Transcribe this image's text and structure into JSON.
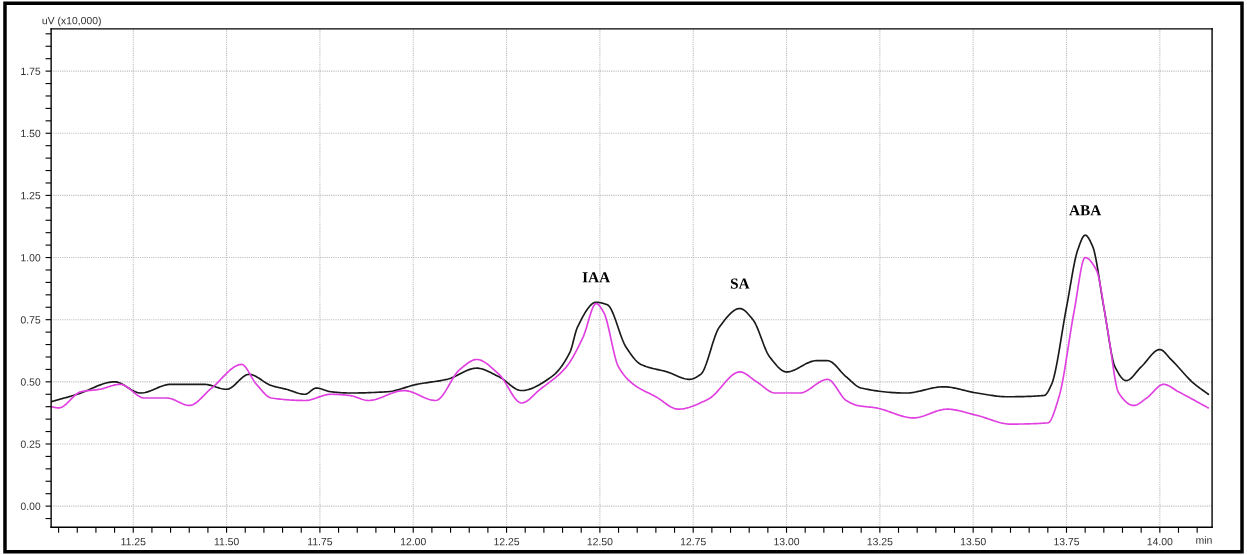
{
  "chart_data": {
    "type": "line",
    "xlabel": "min",
    "ylabel": "uV (x10,000)",
    "xlim": [
      11.03,
      14.14
    ],
    "ylim": [
      -0.085,
      1.92
    ],
    "grid": true,
    "xticks": [
      {
        "value": 11.05,
        "label": null
      },
      {
        "value": 11.1,
        "label": null
      },
      {
        "value": 11.15,
        "label": null
      },
      {
        "value": 11.2,
        "label": null
      },
      {
        "value": 11.25,
        "label": "11.25"
      },
      {
        "value": 11.3,
        "label": null
      },
      {
        "value": 11.35,
        "label": null
      },
      {
        "value": 11.4,
        "label": null
      },
      {
        "value": 11.45,
        "label": null
      },
      {
        "value": 11.5,
        "label": "11.50"
      },
      {
        "value": 11.55,
        "label": null
      },
      {
        "value": 11.6,
        "label": null
      },
      {
        "value": 11.65,
        "label": null
      },
      {
        "value": 11.7,
        "label": null
      },
      {
        "value": 11.75,
        "label": "11.75"
      },
      {
        "value": 11.8,
        "label": null
      },
      {
        "value": 11.85,
        "label": null
      },
      {
        "value": 11.9,
        "label": null
      },
      {
        "value": 11.95,
        "label": null
      },
      {
        "value": 12.0,
        "label": "12.00"
      },
      {
        "value": 12.05,
        "label": null
      },
      {
        "value": 12.1,
        "label": null
      },
      {
        "value": 12.15,
        "label": null
      },
      {
        "value": 12.2,
        "label": null
      },
      {
        "value": 12.25,
        "label": "12.25"
      },
      {
        "value": 12.3,
        "label": null
      },
      {
        "value": 12.35,
        "label": null
      },
      {
        "value": 12.4,
        "label": null
      },
      {
        "value": 12.45,
        "label": null
      },
      {
        "value": 12.5,
        "label": "12.50"
      },
      {
        "value": 12.55,
        "label": null
      },
      {
        "value": 12.6,
        "label": null
      },
      {
        "value": 12.65,
        "label": null
      },
      {
        "value": 12.7,
        "label": null
      },
      {
        "value": 12.75,
        "label": "12.75"
      },
      {
        "value": 12.8,
        "label": null
      },
      {
        "value": 12.85,
        "label": null
      },
      {
        "value": 12.9,
        "label": null
      },
      {
        "value": 12.95,
        "label": null
      },
      {
        "value": 13.0,
        "label": "13.00"
      },
      {
        "value": 13.05,
        "label": null
      },
      {
        "value": 13.1,
        "label": null
      },
      {
        "value": 13.15,
        "label": null
      },
      {
        "value": 13.2,
        "label": null
      },
      {
        "value": 13.25,
        "label": "13.25"
      },
      {
        "value": 13.3,
        "label": null
      },
      {
        "value": 13.35,
        "label": null
      },
      {
        "value": 13.4,
        "label": null
      },
      {
        "value": 13.45,
        "label": null
      },
      {
        "value": 13.5,
        "label": "13.50"
      },
      {
        "value": 13.55,
        "label": null
      },
      {
        "value": 13.6,
        "label": null
      },
      {
        "value": 13.65,
        "label": null
      },
      {
        "value": 13.7,
        "label": null
      },
      {
        "value": 13.75,
        "label": "13.75"
      },
      {
        "value": 13.8,
        "label": null
      },
      {
        "value": 13.85,
        "label": null
      },
      {
        "value": 13.9,
        "label": null
      },
      {
        "value": 13.95,
        "label": null
      },
      {
        "value": 14.0,
        "label": "14.00"
      },
      {
        "value": 14.05,
        "label": null
      },
      {
        "value": 14.1,
        "label": null
      }
    ],
    "yticks": [
      {
        "value": -0.05,
        "label": null
      },
      {
        "value": 0.0,
        "label": "0.00"
      },
      {
        "value": 0.05,
        "label": null
      },
      {
        "value": 0.1,
        "label": null
      },
      {
        "value": 0.15,
        "label": null
      },
      {
        "value": 0.2,
        "label": null
      },
      {
        "value": 0.25,
        "label": "0.25"
      },
      {
        "value": 0.3,
        "label": null
      },
      {
        "value": 0.35,
        "label": null
      },
      {
        "value": 0.4,
        "label": null
      },
      {
        "value": 0.45,
        "label": null
      },
      {
        "value": 0.5,
        "label": "0.50"
      },
      {
        "value": 0.55,
        "label": null
      },
      {
        "value": 0.6,
        "label": null
      },
      {
        "value": 0.65,
        "label": null
      },
      {
        "value": 0.7,
        "label": null
      },
      {
        "value": 0.75,
        "label": "0.75"
      },
      {
        "value": 0.8,
        "label": null
      },
      {
        "value": 0.85,
        "label": null
      },
      {
        "value": 0.9,
        "label": null
      },
      {
        "value": 0.95,
        "label": null
      },
      {
        "value": 1.0,
        "label": "1.00"
      },
      {
        "value": 1.05,
        "label": null
      },
      {
        "value": 1.1,
        "label": null
      },
      {
        "value": 1.15,
        "label": null
      },
      {
        "value": 1.2,
        "label": null
      },
      {
        "value": 1.25,
        "label": "1.25"
      },
      {
        "value": 1.3,
        "label": null
      },
      {
        "value": 1.35,
        "label": null
      },
      {
        "value": 1.4,
        "label": null
      },
      {
        "value": 1.45,
        "label": null
      },
      {
        "value": 1.5,
        "label": "1.50"
      },
      {
        "value": 1.55,
        "label": null
      },
      {
        "value": 1.6,
        "label": null
      },
      {
        "value": 1.65,
        "label": null
      },
      {
        "value": 1.7,
        "label": null
      },
      {
        "value": 1.75,
        "label": "1.75"
      },
      {
        "value": 1.8,
        "label": null
      },
      {
        "value": 1.85,
        "label": null
      },
      {
        "value": 1.9,
        "label": null
      }
    ],
    "annotations": [
      {
        "text": "IAA",
        "x": 12.49,
        "y": 0.82
      },
      {
        "text": "SA",
        "x": 12.875,
        "y": 0.795
      },
      {
        "text": "ABA",
        "x": 13.8,
        "y": 1.09
      }
    ],
    "series": [
      {
        "color": "#1a1a1a",
        "x": [
          11.03,
          11.1,
          11.2,
          11.27,
          11.35,
          11.44,
          11.5,
          11.56,
          11.62,
          11.66,
          11.71,
          11.74,
          11.78,
          11.83,
          11.93,
          12.01,
          12.09,
          12.17,
          12.23,
          12.29,
          12.37,
          12.42,
          12.44,
          12.49,
          12.52,
          12.57,
          12.61,
          12.68,
          12.74,
          12.77,
          12.82,
          12.875,
          12.91,
          12.955,
          13.0,
          13.08,
          13.11,
          13.16,
          13.2,
          13.32,
          13.42,
          13.51,
          13.59,
          13.69,
          13.71,
          13.75,
          13.78,
          13.8,
          13.82,
          13.85,
          13.88,
          13.91,
          13.95,
          14.0,
          14.03,
          14.09,
          14.13
        ],
        "values": [
          0.42,
          0.45,
          0.5,
          0.455,
          0.49,
          0.49,
          0.47,
          0.53,
          0.485,
          0.47,
          0.45,
          0.475,
          0.46,
          0.455,
          0.46,
          0.49,
          0.51,
          0.555,
          0.52,
          0.465,
          0.52,
          0.62,
          0.72,
          0.82,
          0.81,
          0.64,
          0.57,
          0.54,
          0.51,
          0.53,
          0.72,
          0.795,
          0.75,
          0.6,
          0.54,
          0.585,
          0.585,
          0.52,
          0.475,
          0.455,
          0.48,
          0.455,
          0.44,
          0.445,
          0.49,
          0.8,
          1.03,
          1.09,
          1.045,
          0.8,
          0.56,
          0.505,
          0.56,
          0.63,
          0.59,
          0.495,
          0.45
        ]
      },
      {
        "color": "#e040e0",
        "x": [
          11.03,
          11.05,
          11.11,
          11.16,
          11.215,
          11.28,
          11.34,
          11.4,
          11.46,
          11.54,
          11.58,
          11.62,
          11.71,
          11.78,
          11.83,
          11.88,
          11.975,
          12.06,
          12.125,
          12.17,
          12.23,
          12.29,
          12.34,
          12.41,
          12.455,
          12.49,
          12.51,
          12.55,
          12.59,
          12.65,
          12.71,
          12.79,
          12.875,
          12.92,
          12.97,
          13.035,
          13.11,
          13.16,
          13.19,
          13.24,
          13.34,
          13.43,
          13.51,
          13.6,
          13.7,
          13.73,
          13.77,
          13.8,
          13.83,
          13.86,
          13.89,
          13.93,
          13.965,
          14.01,
          14.05,
          14.13
        ],
        "values": [
          0.4,
          0.395,
          0.46,
          0.47,
          0.49,
          0.435,
          0.435,
          0.405,
          0.475,
          0.57,
          0.49,
          0.435,
          0.425,
          0.45,
          0.445,
          0.425,
          0.465,
          0.425,
          0.55,
          0.59,
          0.53,
          0.415,
          0.47,
          0.56,
          0.68,
          0.815,
          0.78,
          0.56,
          0.49,
          0.44,
          0.39,
          0.43,
          0.54,
          0.5,
          0.455,
          0.455,
          0.51,
          0.425,
          0.405,
          0.395,
          0.355,
          0.39,
          0.365,
          0.33,
          0.335,
          0.44,
          0.78,
          1.0,
          0.95,
          0.71,
          0.455,
          0.405,
          0.435,
          0.49,
          0.46,
          0.395
        ]
      }
    ]
  }
}
